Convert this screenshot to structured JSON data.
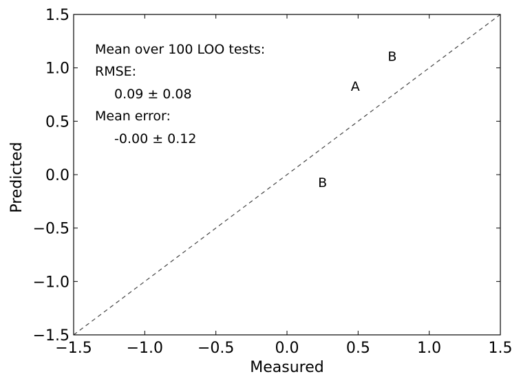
{
  "chart_data": {
    "type": "scatter",
    "title": "",
    "xlabel": "Measured",
    "ylabel": "Predicted",
    "xlim": [
      -1.5,
      1.5
    ],
    "ylim": [
      -1.5,
      1.5
    ],
    "xticks": [
      -1.5,
      -1.0,
      -0.5,
      0.0,
      0.5,
      1.0,
      1.5
    ],
    "yticks": [
      -1.5,
      -1.0,
      -0.5,
      0.0,
      0.5,
      1.0,
      1.5
    ],
    "xtick_labels": [
      "−1.5",
      "−1.0",
      "−0.5",
      "0.0",
      "0.5",
      "1.0",
      "1.5"
    ],
    "ytick_labels": [
      "−1.5",
      "−1.0",
      "−0.5",
      "0.0",
      "0.5",
      "1.0",
      "1.5"
    ],
    "grid": false,
    "reference_line": {
      "style": "dashed",
      "color": "#444444",
      "from": [
        -1.5,
        -1.5
      ],
      "to": [
        1.5,
        1.5
      ]
    },
    "points": [
      {
        "label": "B",
        "x": 0.74,
        "y": 1.11
      },
      {
        "label": "A",
        "x": 0.48,
        "y": 0.83
      },
      {
        "label": "B",
        "x": 0.25,
        "y": -0.07
      }
    ],
    "annotations": [
      "Mean over 100 LOO tests:",
      "RMSE:",
      "0.09 ± 0.08",
      "Mean error:",
      "-0.00 ± 0.12"
    ]
  }
}
